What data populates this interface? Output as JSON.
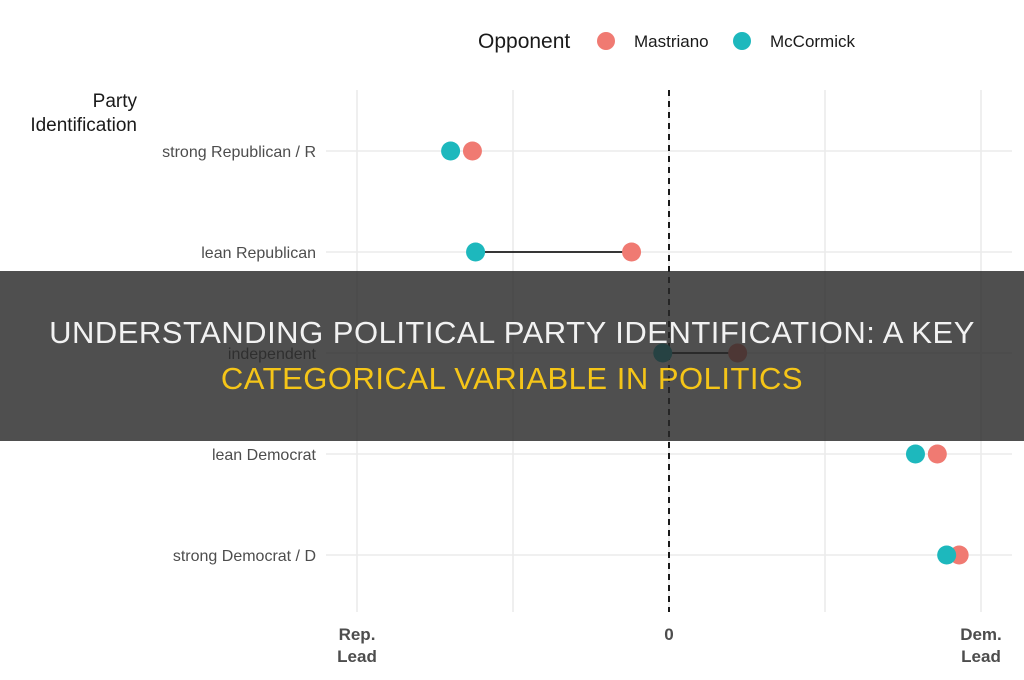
{
  "legend": {
    "title": "Opponent",
    "items": [
      {
        "label": "Mastriano",
        "color": "#F07A72"
      },
      {
        "label": "McCormick",
        "color": "#1DB8BD"
      }
    ]
  },
  "banner": {
    "line1": "UNDERSTANDING POLITICAL PARTY IDENTIFICATION: A KEY",
    "line2": "CATEGORICAL VARIABLE IN POLITICS",
    "background": "#2b2b2b",
    "line1_color": "#f2f2f2",
    "line2_color": "#f5c518"
  },
  "chart_data": {
    "type": "scatter",
    "subtype": "dumbbell",
    "ylabel": "Party\nIdentification",
    "categories": [
      "strong Republican / R",
      "lean Republican",
      "independent",
      "lean Democrat",
      "strong Democrat / D"
    ],
    "series": [
      {
        "name": "Mastriano",
        "color": "#F07A72",
        "values": [
          -0.63,
          -0.12,
          0.22,
          0.86,
          0.93
        ]
      },
      {
        "name": "McCormick",
        "color": "#1DB8BD",
        "values": [
          -0.7,
          -0.62,
          -0.02,
          0.79,
          0.89
        ]
      }
    ],
    "xlim": [
      -1.0,
      1.0
    ],
    "x_ticks": [
      {
        "value": -1,
        "label": "Rep.\nLead"
      },
      {
        "value": 0,
        "label": "0"
      },
      {
        "value": 1,
        "label": "Dem.\nLead"
      }
    ],
    "reference_line": {
      "x": 0,
      "style": "dashed"
    },
    "connector_threshold": 0.1,
    "grid": true,
    "legend_position": "top"
  }
}
